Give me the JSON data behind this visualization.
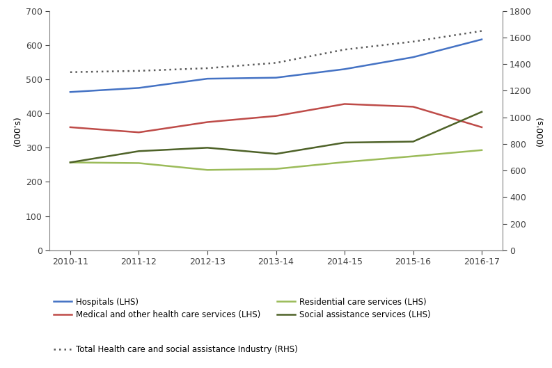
{
  "x_labels": [
    "2010-11",
    "2011-12",
    "2012-13",
    "2013-14",
    "2014-15",
    "2015-16",
    "2016-17"
  ],
  "hospitals": [
    463,
    475,
    502,
    505,
    530,
    565,
    617
  ],
  "medical": [
    360,
    345,
    375,
    393,
    428,
    420,
    360
  ],
  "residential": [
    257,
    255,
    235,
    238,
    258,
    275,
    293
  ],
  "social_assistance": [
    257,
    290,
    300,
    282,
    315,
    318,
    405
  ],
  "total_rhs": [
    1340,
    1350,
    1370,
    1410,
    1510,
    1570,
    1650
  ],
  "hospitals_color": "#4472C4",
  "medical_color": "#BE4B48",
  "residential_color": "#9BBB59",
  "social_color": "#4E6228",
  "total_color": "#595959",
  "lhs_ylim": [
    0,
    700
  ],
  "rhs_ylim": [
    0,
    1800
  ],
  "lhs_yticks": [
    0,
    100,
    200,
    300,
    400,
    500,
    600,
    700
  ],
  "rhs_yticks": [
    0,
    200,
    400,
    600,
    800,
    1000,
    1200,
    1400,
    1600,
    1800
  ],
  "ylabel_lhs": "(000's)",
  "ylabel_rhs": "(000's)",
  "legend_hospitals": "Hospitals (LHS)",
  "legend_medical": "Medical and other health care services (LHS)",
  "legend_residential": "Residential care services (LHS)",
  "legend_social": "Social assistance services (LHS)",
  "legend_total": "Total Health care and social assistance Industry (RHS)",
  "bg_color": "#FFFFFF",
  "linewidth": 1.8
}
